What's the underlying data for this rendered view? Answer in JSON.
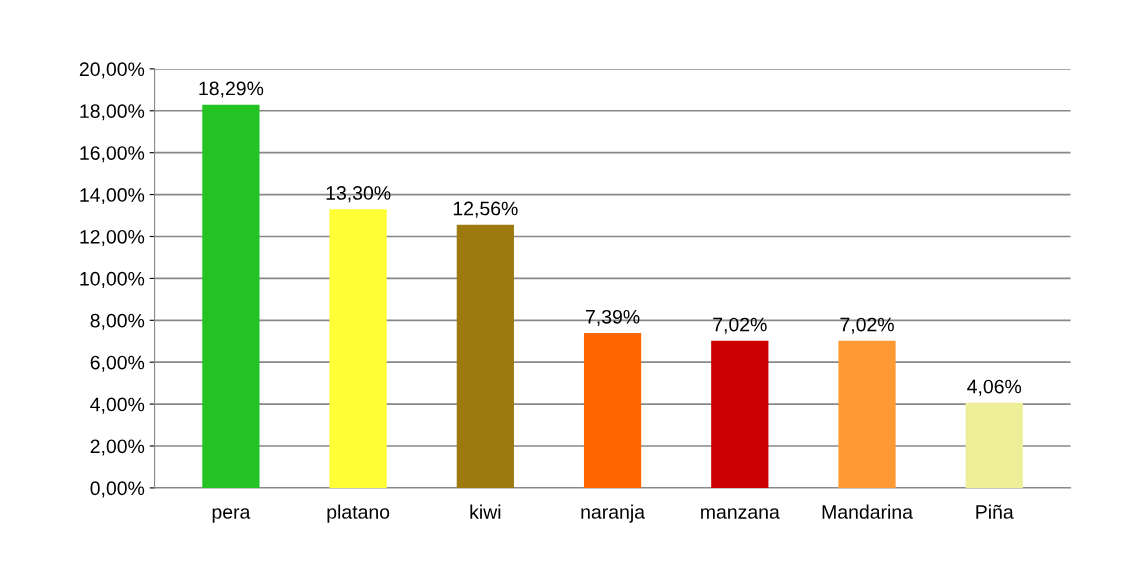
{
  "chart_data": {
    "type": "bar",
    "categories": [
      "pera",
      "platano",
      "kiwi",
      "naranja",
      "manzana",
      "Mandarina",
      "Piña"
    ],
    "values": [
      18.29,
      13.3,
      12.56,
      7.39,
      7.02,
      7.02,
      4.06
    ],
    "colors": [
      "#22c322",
      "#ffff33",
      "#9c7a10",
      "#ff6600",
      "#cc0000",
      "#ff9933",
      "#eeee99"
    ],
    "value_labels": [
      "18,29%",
      "13,30%",
      "12,56%",
      "7,39%",
      "7,02%",
      "7,02%",
      "4,06%"
    ],
    "ylim": [
      0,
      20
    ],
    "yticks": [
      {
        "value": 0,
        "label": "0,00%"
      },
      {
        "value": 2,
        "label": "2,00%"
      },
      {
        "value": 4,
        "label": "4,00%"
      },
      {
        "value": 6,
        "label": "6,00%"
      },
      {
        "value": 8,
        "label": "8,00%"
      },
      {
        "value": 10,
        "label": "10,00%"
      },
      {
        "value": 12,
        "label": "12,00%"
      },
      {
        "value": 14,
        "label": "14,00%"
      },
      {
        "value": 16,
        "label": "16,00%"
      },
      {
        "value": 18,
        "label": "18,00%"
      },
      {
        "value": 20,
        "label": "20,00%"
      }
    ],
    "grid": "y",
    "legend": false
  }
}
